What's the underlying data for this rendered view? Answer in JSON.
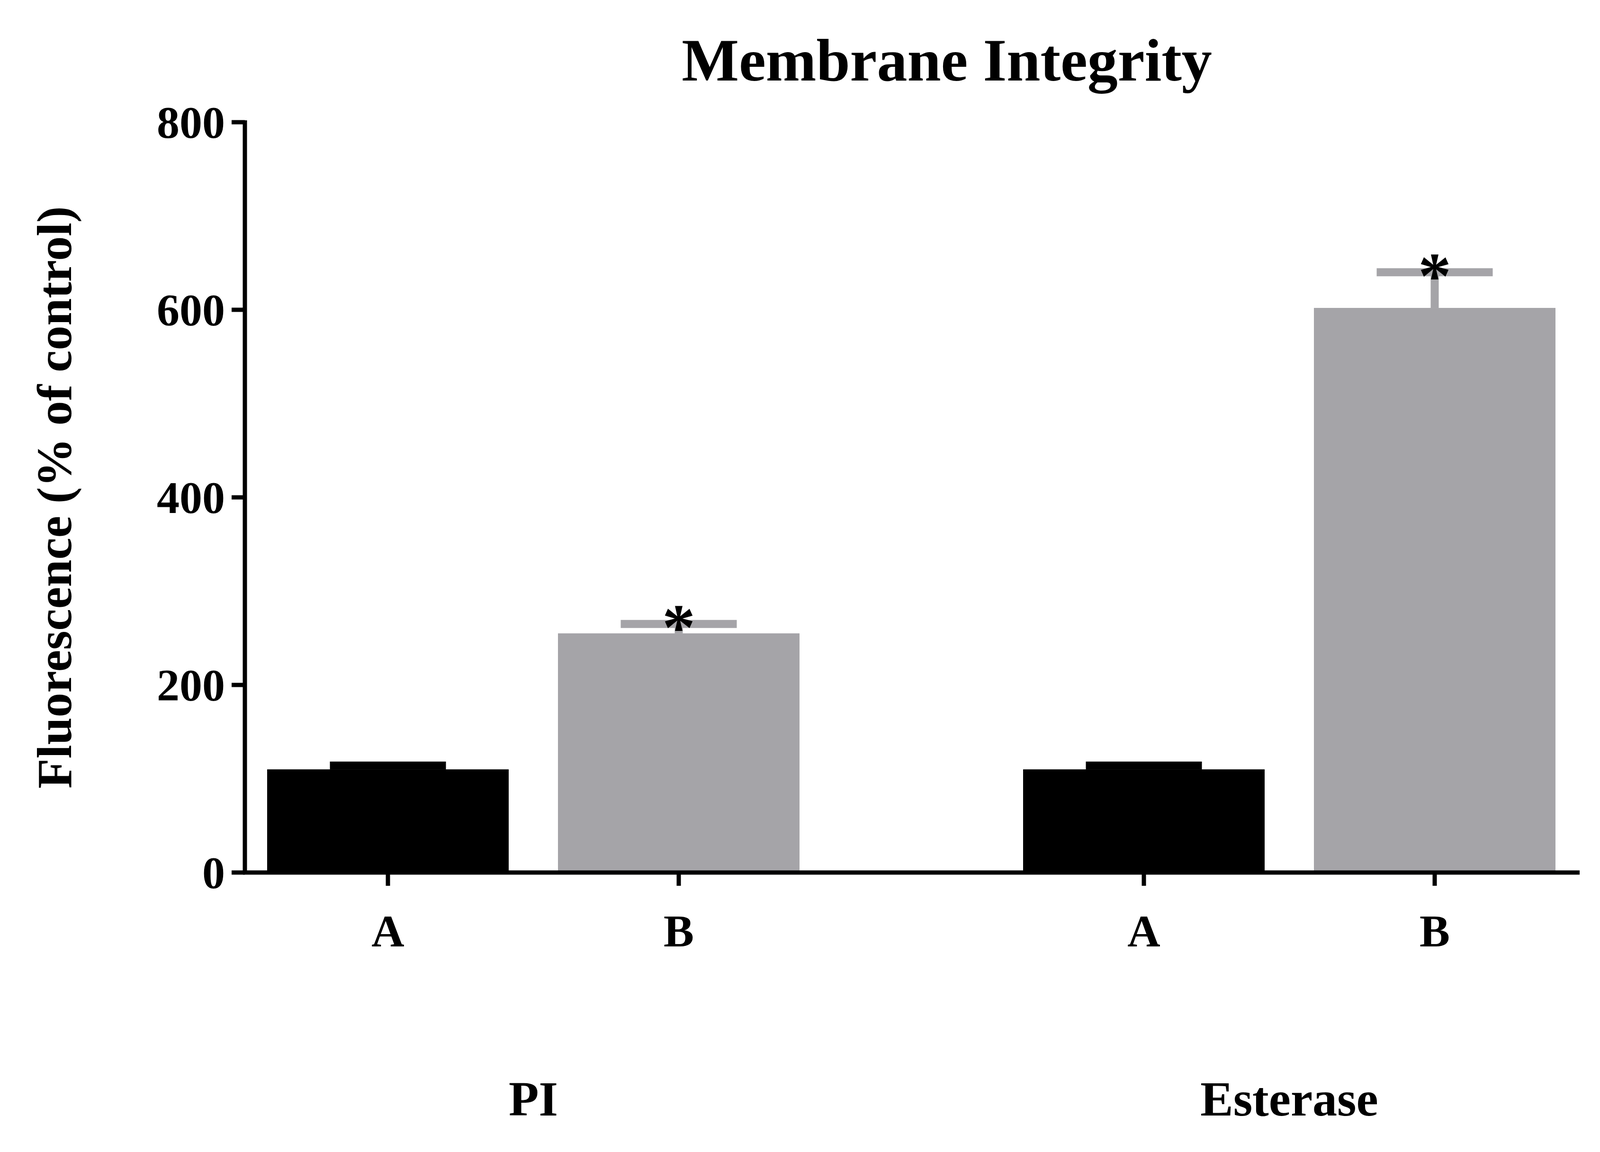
{
  "chart_data": {
    "type": "bar",
    "title": "Membrane Integrity",
    "y_label": "Fluorescence (% of control)",
    "ylim": [
      0,
      800
    ],
    "yticks": [
      0,
      200,
      400,
      600,
      800
    ],
    "groups": [
      {
        "label": "PI",
        "categories": [
          "A",
          "B"
        ],
        "values": [
          110,
          255
        ],
        "errors": [
          4,
          10
        ],
        "colors": [
          "#000000",
          "#a5a4a8"
        ],
        "annotations": [
          null,
          "*"
        ]
      },
      {
        "label": "Esterase",
        "categories": [
          "A",
          "B"
        ],
        "values": [
          110,
          602
        ],
        "errors": [
          4,
          38
        ],
        "colors": [
          "#000000",
          "#a5a4a8"
        ],
        "annotations": [
          null,
          "*"
        ]
      }
    ]
  }
}
